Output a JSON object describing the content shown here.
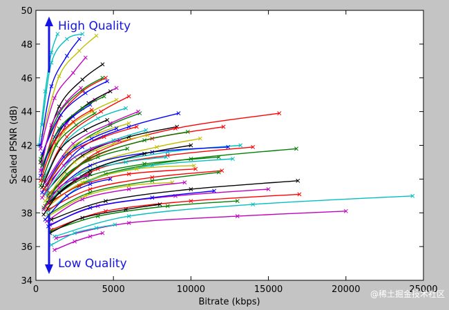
{
  "chart_data": {
    "type": "line",
    "xlabel": "Bitrate (kbps)",
    "ylabel": "Scaled PSNR (dB)",
    "xlim": [
      0,
      25000
    ],
    "ylim": [
      34,
      50
    ],
    "x_ticks": [
      "0",
      "5000",
      "10000",
      "15000",
      "20000",
      "25000"
    ],
    "y_ticks": [
      "34",
      "36",
      "38",
      "40",
      "42",
      "44",
      "46",
      "48",
      "50"
    ],
    "grid": false,
    "legend": "none",
    "marker": "x",
    "annotations": {
      "top": "High Quality",
      "bottom": "Low Quality",
      "color": "#1414e6"
    },
    "watermark": "@稀土掘金技术社区",
    "series": [
      {
        "color": "#00bfbf",
        "x": [
          400,
          1000,
          2000,
          3000
        ],
        "y": [
          43.2,
          46.9,
          48.3,
          48.6
        ]
      },
      {
        "color": "#00bfbf",
        "x": [
          200,
          600,
          1000,
          1400
        ],
        "y": [
          42.0,
          45.2,
          47.5,
          48.6
        ]
      },
      {
        "color": "#bfbf00",
        "x": [
          400,
          1500,
          2800,
          3900
        ],
        "y": [
          42.6,
          46.1,
          47.6,
          48.5
        ]
      },
      {
        "color": "#0000ff",
        "x": [
          300,
          1000,
          2000,
          2800
        ],
        "y": [
          42.0,
          45.5,
          47.3,
          48.3
        ]
      },
      {
        "color": "#bf00bf",
        "x": [
          300,
          1200,
          2400,
          3200
        ],
        "y": [
          41.8,
          44.8,
          46.3,
          47.2
        ]
      },
      {
        "color": "#000000",
        "x": [
          300,
          1500,
          3000,
          4300
        ],
        "y": [
          41.0,
          44.3,
          45.9,
          46.8
        ]
      },
      {
        "color": "#ff0000",
        "x": [
          400,
          1500,
          3000,
          4500
        ],
        "y": [
          40.5,
          43.6,
          45.2,
          46.0
        ]
      },
      {
        "color": "#008000",
        "x": [
          300,
          1500,
          3000,
          4300
        ],
        "y": [
          41.2,
          43.9,
          45.3,
          46.0
        ]
      },
      {
        "color": "#bf00bf",
        "x": [
          500,
          2000,
          3800,
          5200
        ],
        "y": [
          40.2,
          43.3,
          44.7,
          45.4
        ]
      },
      {
        "color": "#0000ff",
        "x": [
          400,
          1600,
          3200,
          4600
        ],
        "y": [
          41.5,
          43.8,
          45.1,
          45.8
        ]
      },
      {
        "color": "#000000",
        "x": [
          400,
          1800,
          3400,
          4800
        ],
        "y": [
          40.8,
          43.2,
          44.5,
          45.2
        ]
      },
      {
        "color": "#ff0000",
        "x": [
          500,
          2000,
          4200,
          6000
        ],
        "y": [
          39.9,
          42.5,
          44.0,
          44.9
        ]
      },
      {
        "color": "#bfbf00",
        "x": [
          400,
          1800,
          3600,
          5200
        ],
        "y": [
          40.5,
          42.8,
          44.0,
          44.7
        ]
      },
      {
        "color": "#00bfbf",
        "x": [
          500,
          2000,
          4000,
          5800
        ],
        "y": [
          40.0,
          42.3,
          43.6,
          44.2
        ]
      },
      {
        "color": "#008000",
        "x": [
          600,
          2500,
          4800,
          6700
        ],
        "y": [
          39.5,
          41.9,
          43.2,
          43.9
        ]
      },
      {
        "color": "#bf00bf",
        "x": [
          600,
          2400,
          4800,
          6600
        ],
        "y": [
          39.8,
          42.1,
          43.3,
          44.0
        ]
      },
      {
        "color": "#0000ff",
        "x": [
          700,
          3000,
          6000,
          9200
        ],
        "y": [
          39.6,
          41.9,
          43.1,
          43.9
        ]
      },
      {
        "color": "#000000",
        "x": [
          700,
          3000,
          6000,
          9100
        ],
        "y": [
          39.3,
          41.4,
          42.5,
          43.1
        ]
      },
      {
        "color": "#ff0000",
        "x": [
          900,
          4000,
          9000,
          15700
        ],
        "y": [
          39.2,
          41.6,
          43.0,
          43.9
        ]
      },
      {
        "color": "#ff0000",
        "x": [
          800,
          3500,
          7500,
          12100
        ],
        "y": [
          39.0,
          41.2,
          42.4,
          43.1
        ]
      },
      {
        "color": "#008000",
        "x": [
          800,
          3400,
          7000,
          9800
        ],
        "y": [
          39.1,
          41.2,
          42.3,
          42.8
        ]
      },
      {
        "color": "#bfbf00",
        "x": [
          900,
          3800,
          7800,
          10600
        ],
        "y": [
          38.9,
          40.9,
          41.9,
          42.4
        ]
      },
      {
        "color": "#00bfbf",
        "x": [
          900,
          4000,
          8500,
          13200
        ],
        "y": [
          38.8,
          40.7,
          41.6,
          42.0
        ]
      },
      {
        "color": "#0000ff",
        "x": [
          800,
          3500,
          7500,
          12400
        ],
        "y": [
          38.9,
          40.8,
          41.6,
          41.9
        ]
      },
      {
        "color": "#ff0000",
        "x": [
          900,
          4000,
          8500,
          14000
        ],
        "y": [
          38.8,
          40.6,
          41.4,
          41.9
        ]
      },
      {
        "color": "#008000",
        "x": [
          1000,
          4500,
          10000,
          16800
        ],
        "y": [
          38.7,
          40.3,
          41.2,
          41.8
        ]
      },
      {
        "color": "#008000",
        "x": [
          700,
          3200,
          7000,
          11800
        ],
        "y": [
          38.6,
          40.1,
          40.9,
          41.3
        ]
      },
      {
        "color": "#00bfbf",
        "x": [
          600,
          2800,
          5800,
          8400
        ],
        "y": [
          38.4,
          40.3,
          41.0,
          41.3
        ]
      },
      {
        "color": "#00bfbf",
        "x": [
          800,
          3500,
          7500,
          12700
        ],
        "y": [
          38.1,
          39.9,
          40.8,
          41.2
        ]
      },
      {
        "color": "#bfbf00",
        "x": [
          700,
          3000,
          6500,
          10200
        ],
        "y": [
          38.3,
          39.8,
          40.6,
          40.8
        ]
      },
      {
        "color": "#ff0000",
        "x": [
          600,
          2800,
          6000,
          10300
        ],
        "y": [
          38.4,
          39.6,
          40.3,
          40.6
        ]
      },
      {
        "color": "#ff0000",
        "x": [
          800,
          3500,
          7500,
          12000
        ],
        "y": [
          38.2,
          39.4,
          40.1,
          40.5
        ]
      },
      {
        "color": "#008000",
        "x": [
          800,
          3500,
          7500,
          11800
        ],
        "y": [
          37.9,
          39.2,
          39.9,
          40.4
        ]
      },
      {
        "color": "#bfbf00",
        "x": [
          800,
          3200,
          6000,
          8800
        ],
        "y": [
          37.8,
          39.0,
          39.6,
          39.8
        ]
      },
      {
        "color": "#bf00bf",
        "x": [
          700,
          3000,
          6000,
          9600
        ],
        "y": [
          37.5,
          38.8,
          39.4,
          39.8
        ]
      },
      {
        "color": "#000000",
        "x": [
          1000,
          4500,
          10000,
          16900
        ],
        "y": [
          37.6,
          38.7,
          39.4,
          39.9
        ]
      },
      {
        "color": "#bf00bf",
        "x": [
          900,
          4000,
          9000,
          15000
        ],
        "y": [
          37.3,
          38.4,
          39.0,
          39.4
        ]
      },
      {
        "color": "#0000ff",
        "x": [
          800,
          3500,
          7500,
          11500
        ],
        "y": [
          37.2,
          38.3,
          38.9,
          39.3
        ]
      },
      {
        "color": "#ff0000",
        "x": [
          1000,
          4500,
          10000,
          17000
        ],
        "y": [
          37.0,
          38.1,
          38.7,
          39.1
        ]
      },
      {
        "color": "#008000",
        "x": [
          900,
          4000,
          8500,
          13000
        ],
        "y": [
          36.9,
          37.8,
          38.4,
          38.7
        ]
      },
      {
        "color": "#000000",
        "x": [
          900,
          3000,
          5800,
          8000
        ],
        "y": [
          36.8,
          37.7,
          38.2,
          38.5
        ]
      },
      {
        "color": "#00bfbf",
        "x": [
          1200,
          6000,
          14000,
          24300
        ],
        "y": [
          36.6,
          37.8,
          38.5,
          39.0
        ]
      },
      {
        "color": "#bf00bf",
        "x": [
          1300,
          6000,
          13000,
          20000
        ],
        "y": [
          36.5,
          37.4,
          37.8,
          38.1
        ]
      },
      {
        "color": "#00bfbf",
        "x": [
          1000,
          2500,
          3900,
          5100
        ],
        "y": [
          36.1,
          36.8,
          37.1,
          37.3
        ]
      },
      {
        "color": "#bf00bf",
        "x": [
          1200,
          2500,
          3500,
          4300
        ],
        "y": [
          35.8,
          36.3,
          36.6,
          36.8
        ]
      },
      {
        "color": "#000000",
        "x": [
          500,
          1500,
          2500,
          3500
        ],
        "y": [
          37.9,
          39.2,
          39.9,
          40.3
        ]
      },
      {
        "color": "#0000ff",
        "x": [
          300,
          1200,
          2400,
          3500
        ],
        "y": [
          40.2,
          42.5,
          43.7,
          44.4
        ]
      },
      {
        "color": "#bfbf00",
        "x": [
          500,
          2000,
          4000,
          6000
        ],
        "y": [
          39.0,
          41.6,
          42.7,
          43.3
        ]
      },
      {
        "color": "#008000",
        "x": [
          300,
          1300,
          2600,
          3800
        ],
        "y": [
          39.6,
          42.0,
          43.2,
          43.9
        ]
      },
      {
        "color": "#ff0000",
        "x": [
          300,
          1200,
          2400,
          3600
        ],
        "y": [
          39.9,
          42.2,
          43.4,
          44.1
        ]
      },
      {
        "color": "#bf00bf",
        "x": [
          300,
          1000,
          2000,
          2900
        ],
        "y": [
          40.5,
          43.2,
          44.6,
          45.4
        ]
      },
      {
        "color": "#000000",
        "x": [
          400,
          1600,
          3200,
          4600
        ],
        "y": [
          39.5,
          41.8,
          42.9,
          43.5
        ]
      },
      {
        "color": "#bfbf00",
        "x": [
          600,
          2500,
          5000,
          7200
        ],
        "y": [
          38.7,
          41.0,
          42.1,
          42.6
        ]
      },
      {
        "color": "#008000",
        "x": [
          500,
          2000,
          4000,
          5900
        ],
        "y": [
          38.3,
          40.3,
          41.3,
          41.8
        ]
      },
      {
        "color": "#0000ff",
        "x": [
          400,
          1800,
          3600,
          5200
        ],
        "y": [
          39.2,
          41.3,
          42.4,
          43.0
        ]
      },
      {
        "color": "#00bfbf",
        "x": [
          600,
          2500,
          5000,
          7100
        ],
        "y": [
          39.1,
          41.3,
          42.3,
          42.9
        ]
      },
      {
        "color": "#ff0000",
        "x": [
          500,
          2200,
          4400,
          6500
        ],
        "y": [
          39.4,
          41.5,
          42.5,
          43.1
        ]
      },
      {
        "color": "#bf00bf",
        "x": [
          400,
          1800,
          3600,
          5400
        ],
        "y": [
          38.9,
          40.8,
          41.8,
          42.3
        ]
      },
      {
        "color": "#000000",
        "x": [
          800,
          3500,
          7000,
          10000
        ],
        "y": [
          38.6,
          40.5,
          41.5,
          42.0
        ]
      },
      {
        "color": "#008000",
        "x": [
          400,
          1500,
          3000,
          4400
        ],
        "y": [
          40.8,
          43.0,
          44.2,
          44.9
        ]
      },
      {
        "color": "#bf00bf",
        "x": [
          500,
          1500,
          2500,
          3300
        ],
        "y": [
          38.2,
          39.5,
          40.0,
          40.2
        ]
      },
      {
        "color": "#0000ff",
        "x": [
          600,
          2000,
          3500,
          4800
        ],
        "y": [
          37.6,
          39.0,
          39.7,
          40.0
        ]
      }
    ]
  }
}
